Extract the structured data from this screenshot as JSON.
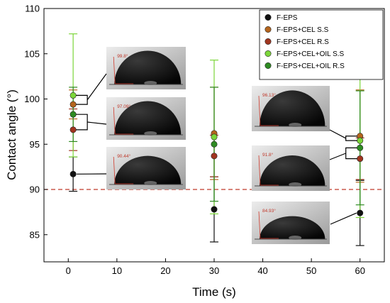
{
  "chart_data": {
    "type": "scatter",
    "xlabel": "Time (s)",
    "ylabel": "Contact angle (°)",
    "xlim": [
      -5,
      65
    ],
    "ylim": [
      82,
      110
    ],
    "xticks": [
      0,
      10,
      20,
      30,
      40,
      50,
      60
    ],
    "yticks": [
      85,
      90,
      95,
      100,
      105,
      110
    ],
    "reference_line": {
      "y": 90,
      "style": "dashed",
      "color": "#c0392b"
    },
    "legend_position": "top-right",
    "series": [
      {
        "name": "F-EPS",
        "color": "#111111",
        "x": [
          1,
          30,
          60
        ],
        "y": [
          91.7,
          87.8,
          87.4
        ],
        "err": [
          1.9,
          3.6,
          3.6
        ]
      },
      {
        "name": "F-EPS+CEL S.S",
        "color": "#b5651d",
        "x": [
          1,
          30,
          60
        ],
        "y": [
          99.4,
          96.2,
          95.9
        ],
        "err": [
          1.6,
          5.1,
          5.1
        ]
      },
      {
        "name": "F-EPS+CEL R.S",
        "color": "#a0351f",
        "x": [
          1,
          30,
          60
        ],
        "y": [
          96.6,
          93.7,
          93.4
        ],
        "err": [
          2.3,
          2.3,
          2.3
        ]
      },
      {
        "name": "F-EPS+CEL+OIL S.S",
        "color": "#7cd63a",
        "x": [
          1,
          30,
          60
        ],
        "y": [
          100.4,
          95.8,
          95.4
        ],
        "err": [
          6.8,
          8.5,
          8.5
        ]
      },
      {
        "name": "F-EPS+CEL+OIL R.S",
        "color": "#2e8b22",
        "x": [
          1,
          30,
          60
        ],
        "y": [
          98.3,
          95.0,
          94.6
        ],
        "err": [
          3.0,
          6.3,
          6.3
        ]
      }
    ],
    "insets": [
      {
        "angle_label": "99.8°",
        "at_time": 1,
        "droplet": "tall"
      },
      {
        "angle_label": "97.09°",
        "at_time": 1,
        "droplet": "tall"
      },
      {
        "angle_label": "90.44°",
        "at_time": 1,
        "droplet": "mid"
      },
      {
        "angle_label": "96.13°",
        "at_time": 60,
        "droplet": "tall"
      },
      {
        "angle_label": "91.8°",
        "at_time": 60,
        "droplet": "mid"
      },
      {
        "angle_label": "84.93°",
        "at_time": 60,
        "droplet": "flat"
      }
    ]
  }
}
